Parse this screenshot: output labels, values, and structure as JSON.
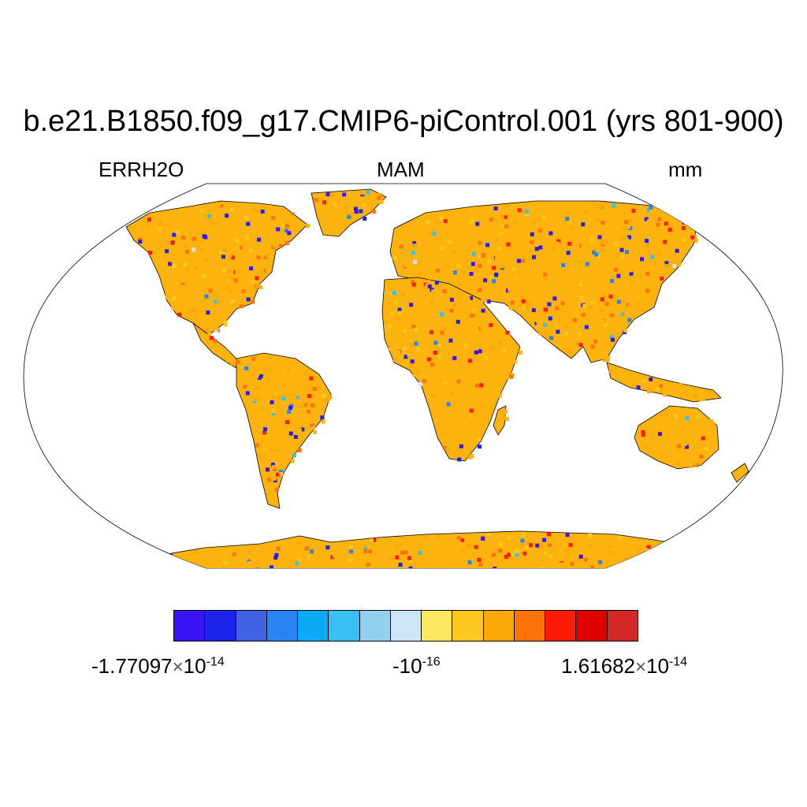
{
  "title": "b.e21.B1850.f09_g17.CMIP6-piControl.001 (yrs 801-900)",
  "left_label": "ERRH2O",
  "center_label": "MAM",
  "right_label": "mm",
  "colorbar": {
    "colors": [
      "#3a14f5",
      "#1c24ec",
      "#3e62e2",
      "#2784f2",
      "#0aaaf6",
      "#38c0f0",
      "#92cff0",
      "#cae6f7",
      "#fde85f",
      "#fcc820",
      "#fca70a",
      "#fd7308",
      "#fc1b06",
      "#e00000",
      "#d32827"
    ],
    "labels": {
      "min_mantissa": "-1.77097",
      "min_exponent": "-14",
      "mid_base": "-10",
      "mid_exponent": "-16",
      "max_mantissa": "1.61682",
      "max_exponent": "-14",
      "times": "×",
      "ten": "10"
    }
  },
  "map": {
    "projection": "Robinson",
    "variable": "ERRH2O",
    "dominant_color": "#fcb30e",
    "land_colors": [
      "#fcb30e",
      "#fca70a",
      "#fcc820",
      "#fd7308",
      "#fc1b06",
      "#1c24ec",
      "#3a14f5",
      "#2784f2",
      "#38c0f0",
      "#cae6f7"
    ]
  }
}
